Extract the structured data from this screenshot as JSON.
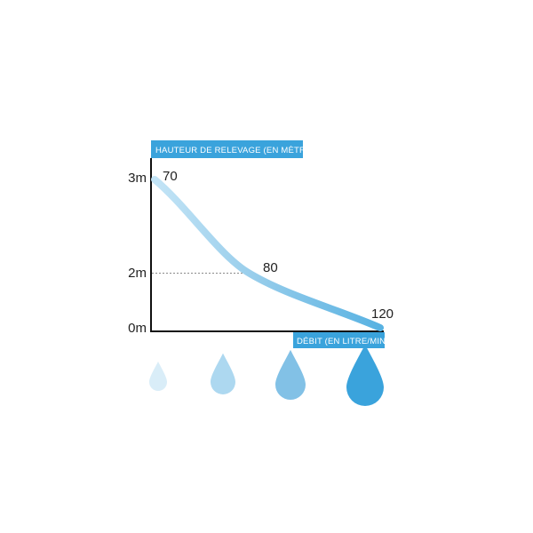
{
  "chart_data": {
    "type": "line",
    "ylabel": "HAUTEUR DE RELEVAGE (EN MÈTRE)",
    "xlabel": "DÉBIT (EN LITRE/MIN)",
    "y_ticks": [
      {
        "label": "3m",
        "value": 3
      },
      {
        "label": "2m",
        "value": 2
      },
      {
        "label": "0m",
        "value": 0
      }
    ],
    "ylim": [
      0,
      3
    ],
    "xlim": [
      70,
      120
    ],
    "points": [
      {
        "x": 70,
        "y": 3,
        "label": "70"
      },
      {
        "x": 80,
        "y": 2,
        "label": "80"
      },
      {
        "x": 120,
        "y": 0,
        "label": "120"
      }
    ],
    "reference_line_y": 2,
    "line_colors": [
      "#bfe2f5",
      "#8ec9ea",
      "#5bb5e3"
    ],
    "label_bg_color": "#3aa3dc",
    "drops": [
      {
        "name": "drop-small",
        "color": "#d9edf8"
      },
      {
        "name": "drop-medium",
        "color": "#add8f0"
      },
      {
        "name": "drop-large",
        "color": "#82c1e6"
      },
      {
        "name": "drop-xlarge",
        "color": "#3aa3dc"
      }
    ]
  }
}
